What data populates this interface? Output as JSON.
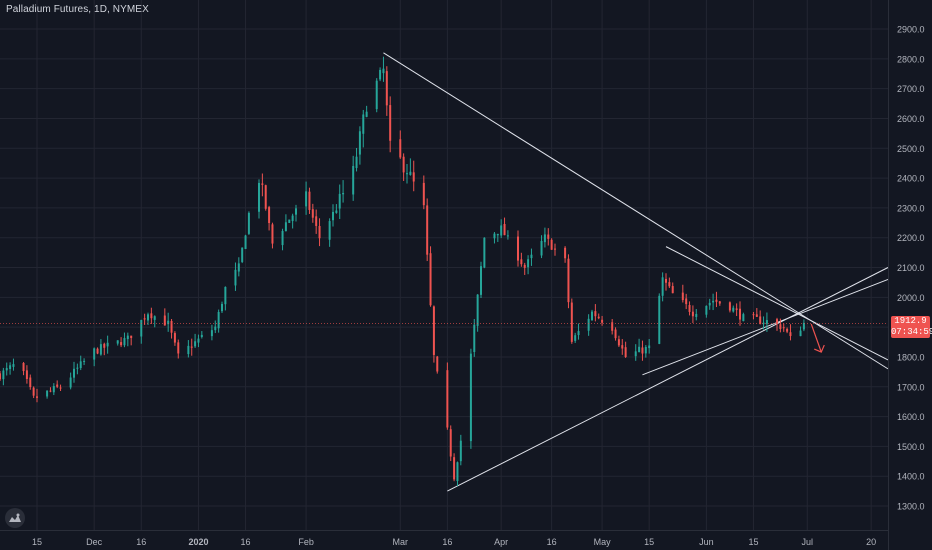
{
  "header": {
    "title": "Palladium Futures, 1D, NYMEX"
  },
  "price_tag": {
    "price": "1912.9",
    "countdown": "07:34:59"
  },
  "icons": {
    "logo": "tradingview-logo-icon"
  },
  "colors": {
    "background": "#131722",
    "up": "#26a69a",
    "down": "#ef5350",
    "grid": "#232632",
    "trendline": "#e0e3eb",
    "arrow": "#ef5350",
    "axis_text": "#b2b5be"
  },
  "chart_data": {
    "type": "candlestick",
    "title": "Palladium Futures, 1D, NYMEX",
    "ylim": [
      1250,
      2950
    ],
    "grid": true,
    "y_ticks": [
      "1300.0",
      "1400.0",
      "1500.0",
      "1600.0",
      "1700.0",
      "1800.0",
      "1900.0",
      "2000.0",
      "2100.0",
      "2200.0",
      "2300.0",
      "2400.0",
      "2500.0",
      "2600.0",
      "2700.0",
      "2800.0",
      "2900.0"
    ],
    "x_ticks": [
      {
        "label": "15",
        "date": "2019-11-15"
      },
      {
        "label": "Dec",
        "date": "2019-12-02"
      },
      {
        "label": "16",
        "date": "2019-12-16"
      },
      {
        "label": "2020",
        "date": "2020-01-02"
      },
      {
        "label": "16",
        "date": "2020-01-16"
      },
      {
        "label": "Feb",
        "date": "2020-02-03"
      },
      {
        "label": "Mar",
        "date": "2020-03-02"
      },
      {
        "label": "16",
        "date": "2020-03-16"
      },
      {
        "label": "Apr",
        "date": "2020-04-01"
      },
      {
        "label": "16",
        "date": "2020-04-16"
      },
      {
        "label": "May",
        "date": "2020-05-01"
      },
      {
        "label": "15",
        "date": "2020-05-15"
      },
      {
        "label": "Jun",
        "date": "2020-06-01"
      },
      {
        "label": "15",
        "date": "2020-06-15"
      },
      {
        "label": "Jul",
        "date": "2020-07-01"
      },
      {
        "label": "20",
        "date": "2020-07-20"
      }
    ],
    "x_start": "2019-11-04",
    "x_end": "2020-07-25",
    "close_path": [
      [
        "2019-11-04",
        1740
      ],
      [
        "2019-11-08",
        1770
      ],
      [
        "2019-11-11",
        1740
      ],
      [
        "2019-11-14",
        1660
      ],
      [
        "2019-11-22",
        1700
      ],
      [
        "2019-12-02",
        1820
      ],
      [
        "2019-12-12",
        1860
      ],
      [
        "2019-12-18",
        1950
      ],
      [
        "2019-12-24",
        1910
      ],
      [
        "2019-12-27",
        1800
      ],
      [
        "2019-12-31",
        1840
      ],
      [
        "2020-01-07",
        1900
      ],
      [
        "2020-01-10",
        2030
      ],
      [
        "2020-01-14",
        2100
      ],
      [
        "2020-01-17",
        2280
      ],
      [
        "2020-01-20",
        2400
      ],
      [
        "2020-01-22",
        2300
      ],
      [
        "2020-01-24",
        2180
      ],
      [
        "2020-01-28",
        2250
      ],
      [
        "2020-02-03",
        2330
      ],
      [
        "2020-02-07",
        2200
      ],
      [
        "2020-02-12",
        2300
      ],
      [
        "2020-02-17",
        2420
      ],
      [
        "2020-02-21",
        2650
      ],
      [
        "2020-02-26",
        2760
      ],
      [
        "2020-02-28",
        2500
      ],
      [
        "2020-03-04",
        2430
      ],
      [
        "2020-03-09",
        2300
      ],
      [
        "2020-03-12",
        1800
      ],
      [
        "2020-03-16",
        1550
      ],
      [
        "2020-03-18",
        1400
      ],
      [
        "2020-03-20",
        1520
      ],
      [
        "2020-03-24",
        1900
      ],
      [
        "2020-03-27",
        2200
      ],
      [
        "2020-04-01",
        2230
      ],
      [
        "2020-04-08",
        2100
      ],
      [
        "2020-04-14",
        2200
      ],
      [
        "2020-04-20",
        2120
      ],
      [
        "2020-04-22",
        1850
      ],
      [
        "2020-04-28",
        1950
      ],
      [
        "2020-05-04",
        1900
      ],
      [
        "2020-05-08",
        1800
      ],
      [
        "2020-05-12",
        1820
      ],
      [
        "2020-05-15",
        1830
      ],
      [
        "2020-05-19",
        2060
      ],
      [
        "2020-05-22",
        2010
      ],
      [
        "2020-05-28",
        1950
      ],
      [
        "2020-06-03",
        1990
      ],
      [
        "2020-06-08",
        1970
      ],
      [
        "2020-06-12",
        1930
      ],
      [
        "2020-06-19",
        1920
      ],
      [
        "2020-06-24",
        1900
      ],
      [
        "2020-06-26",
        1860
      ],
      [
        "2020-06-30",
        1912.9
      ]
    ],
    "trendlines": [
      {
        "from": [
          "2020-02-26",
          2820
        ],
        "to": [
          "2020-07-25",
          1760
        ]
      },
      {
        "from": [
          "2020-03-16",
          1350
        ],
        "to": [
          "2020-07-25",
          2100
        ]
      },
      {
        "from": [
          "2020-05-20",
          2170
        ],
        "to": [
          "2020-07-25",
          1790
        ]
      },
      {
        "from": [
          "2020-05-13",
          1740
        ],
        "to": [
          "2020-07-25",
          2060
        ]
      }
    ],
    "annotations": [
      {
        "type": "arrow",
        "direction": "down",
        "color": "#ef5350",
        "at": [
          "2020-07-01",
          1870
        ]
      }
    ]
  }
}
